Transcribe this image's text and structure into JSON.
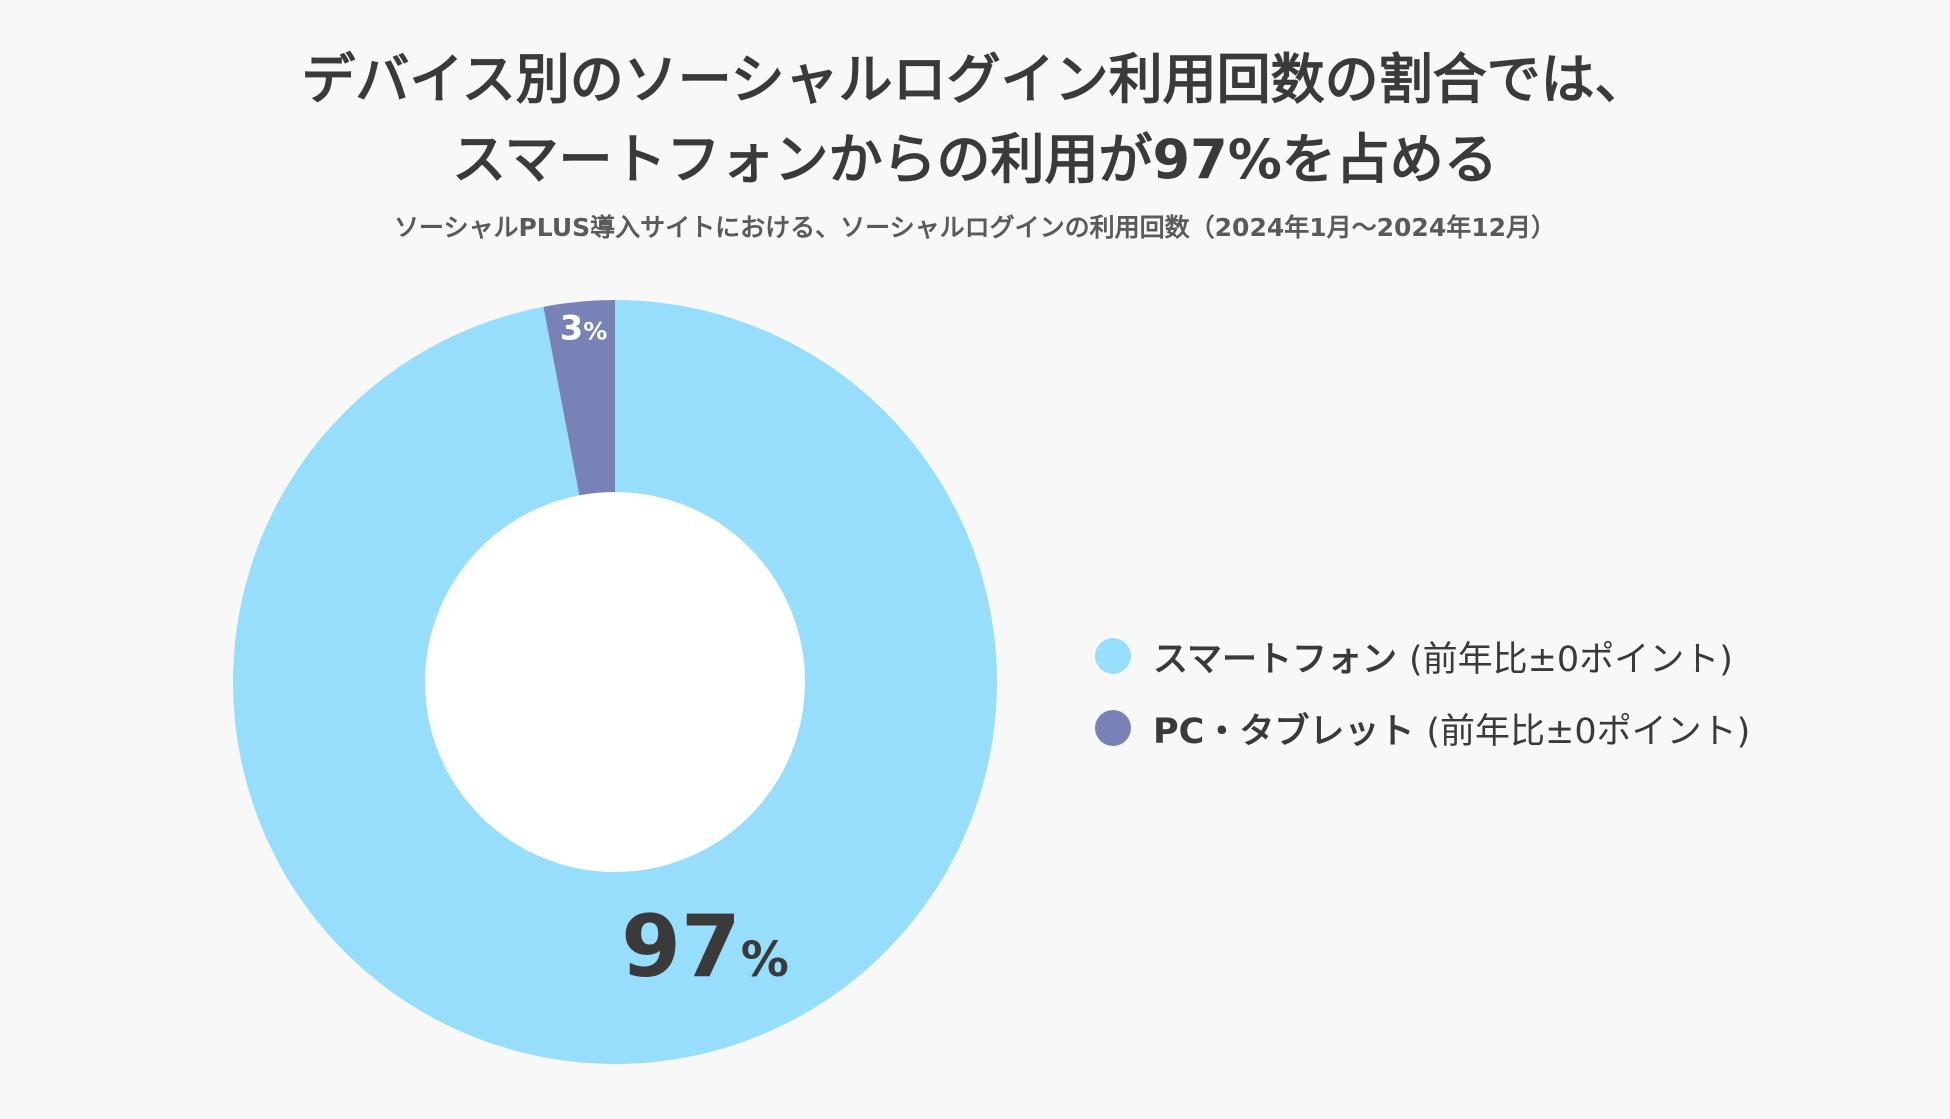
{
  "title": {
    "line1": "デバイス別のソーシャルログイン利用回数の割合では、",
    "line2": "スマートフォンからの利用が97%を占める"
  },
  "subtitle": "ソーシャルPLUS導入サイトにおける、ソーシャルログインの利用回数（2024年1月〜2024年12月）",
  "chart_data": {
    "type": "pie",
    "style": "donut",
    "unit": "%",
    "series": [
      {
        "name": "スマートフォン",
        "value": 97,
        "label_number": "97",
        "label_unit": "%",
        "color": "#97defd",
        "note": "(前年比±0ポイント)"
      },
      {
        "name": "PC・タブレット",
        "value": 3,
        "label_number": "3",
        "label_unit": "%",
        "color": "#7882b6",
        "note": "(前年比±0ポイント)"
      }
    ],
    "start_angle_deg": 0,
    "direction": "clockwise",
    "legend_position": "right"
  },
  "colors": {
    "background": "#f8f8f8",
    "donut_hole": "#ffffff",
    "text_dark": "#3a3a3a",
    "text_light": "#ffffff"
  }
}
